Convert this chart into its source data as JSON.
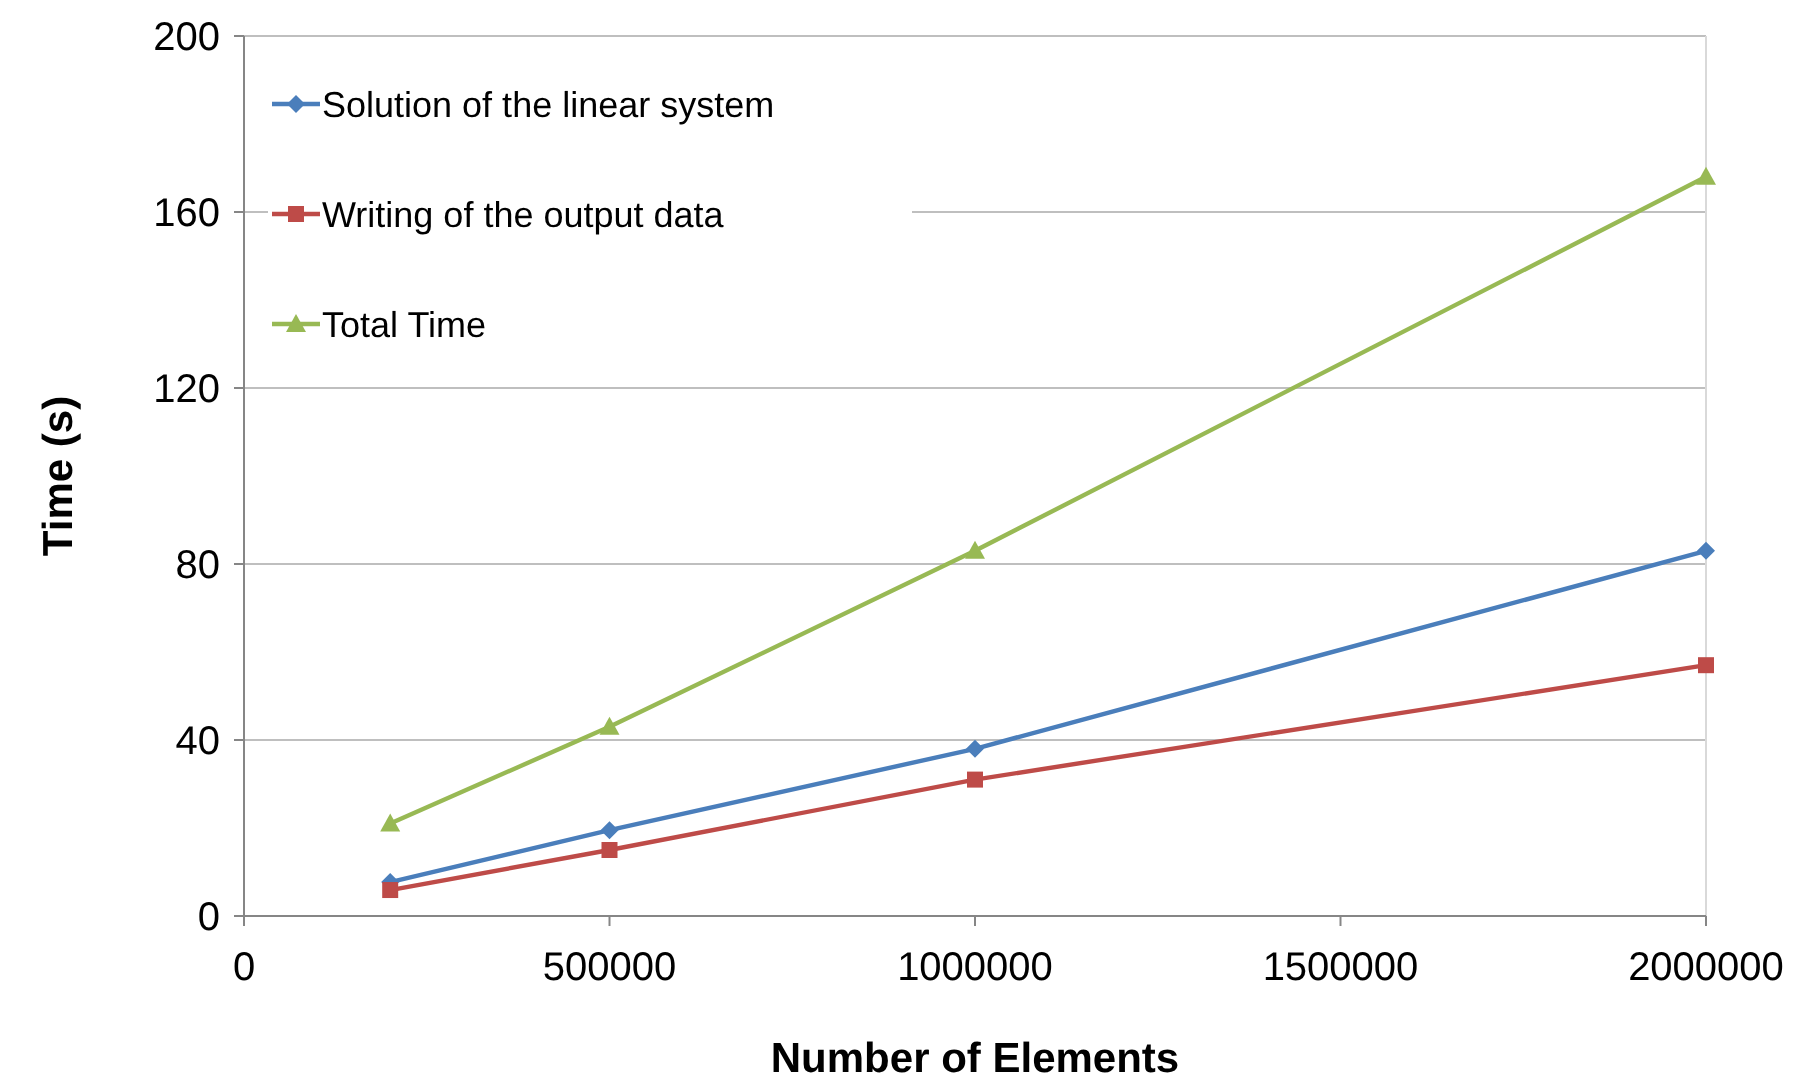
{
  "chart_data": {
    "type": "line",
    "xlabel": "Number of Elements",
    "ylabel": "Time (s)",
    "x": [
      200000,
      500000,
      1000000,
      2000000
    ],
    "xlim": [
      0,
      2000000
    ],
    "xticks": [
      0,
      500000,
      1000000,
      1500000,
      2000000
    ],
    "ylim": [
      0,
      200
    ],
    "yticks": [
      0,
      40,
      80,
      120,
      160,
      200
    ],
    "grid": "y",
    "legend": "top left",
    "series": [
      {
        "name": "Solution of the linear system",
        "color": "#4a7ebb",
        "marker": "diamond",
        "values": [
          7.7,
          19.5,
          38,
          83
        ]
      },
      {
        "name": "Writing of the output data",
        "color": "#be4b48",
        "marker": "square",
        "values": [
          5.9,
          15,
          31,
          57
        ]
      },
      {
        "name": "Total Time",
        "color": "#98b954",
        "marker": "triangle",
        "values": [
          21,
          43,
          83,
          168
        ]
      }
    ]
  }
}
